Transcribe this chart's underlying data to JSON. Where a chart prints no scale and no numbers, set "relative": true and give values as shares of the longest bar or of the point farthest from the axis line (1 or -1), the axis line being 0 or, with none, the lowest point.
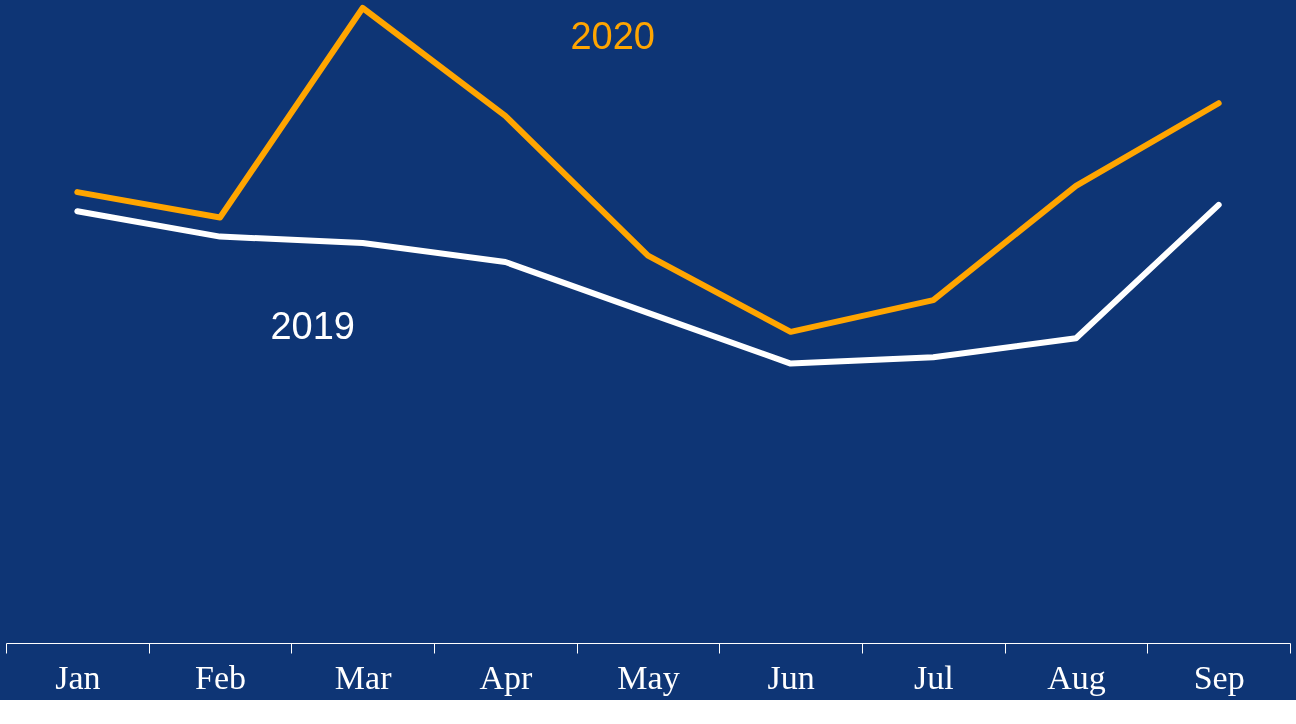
{
  "chart_data": {
    "type": "line",
    "relative": true,
    "categories": [
      "Jan",
      "Feb",
      "Mar",
      "Apr",
      "May",
      "Jun",
      "Jul",
      "Aug",
      "Sep"
    ],
    "series": [
      {
        "name": "2019",
        "color": "#ffffff",
        "values": [
          0.68,
          0.64,
          0.63,
          0.6,
          0.52,
          0.44,
          0.45,
          0.48,
          0.69
        ]
      },
      {
        "name": "2020",
        "color": "#ffa500",
        "values": [
          0.71,
          0.67,
          1.0,
          0.83,
          0.61,
          0.49,
          0.54,
          0.72,
          0.85
        ]
      }
    ],
    "grid": false,
    "marker": "none",
    "line_style": "solid"
  }
}
